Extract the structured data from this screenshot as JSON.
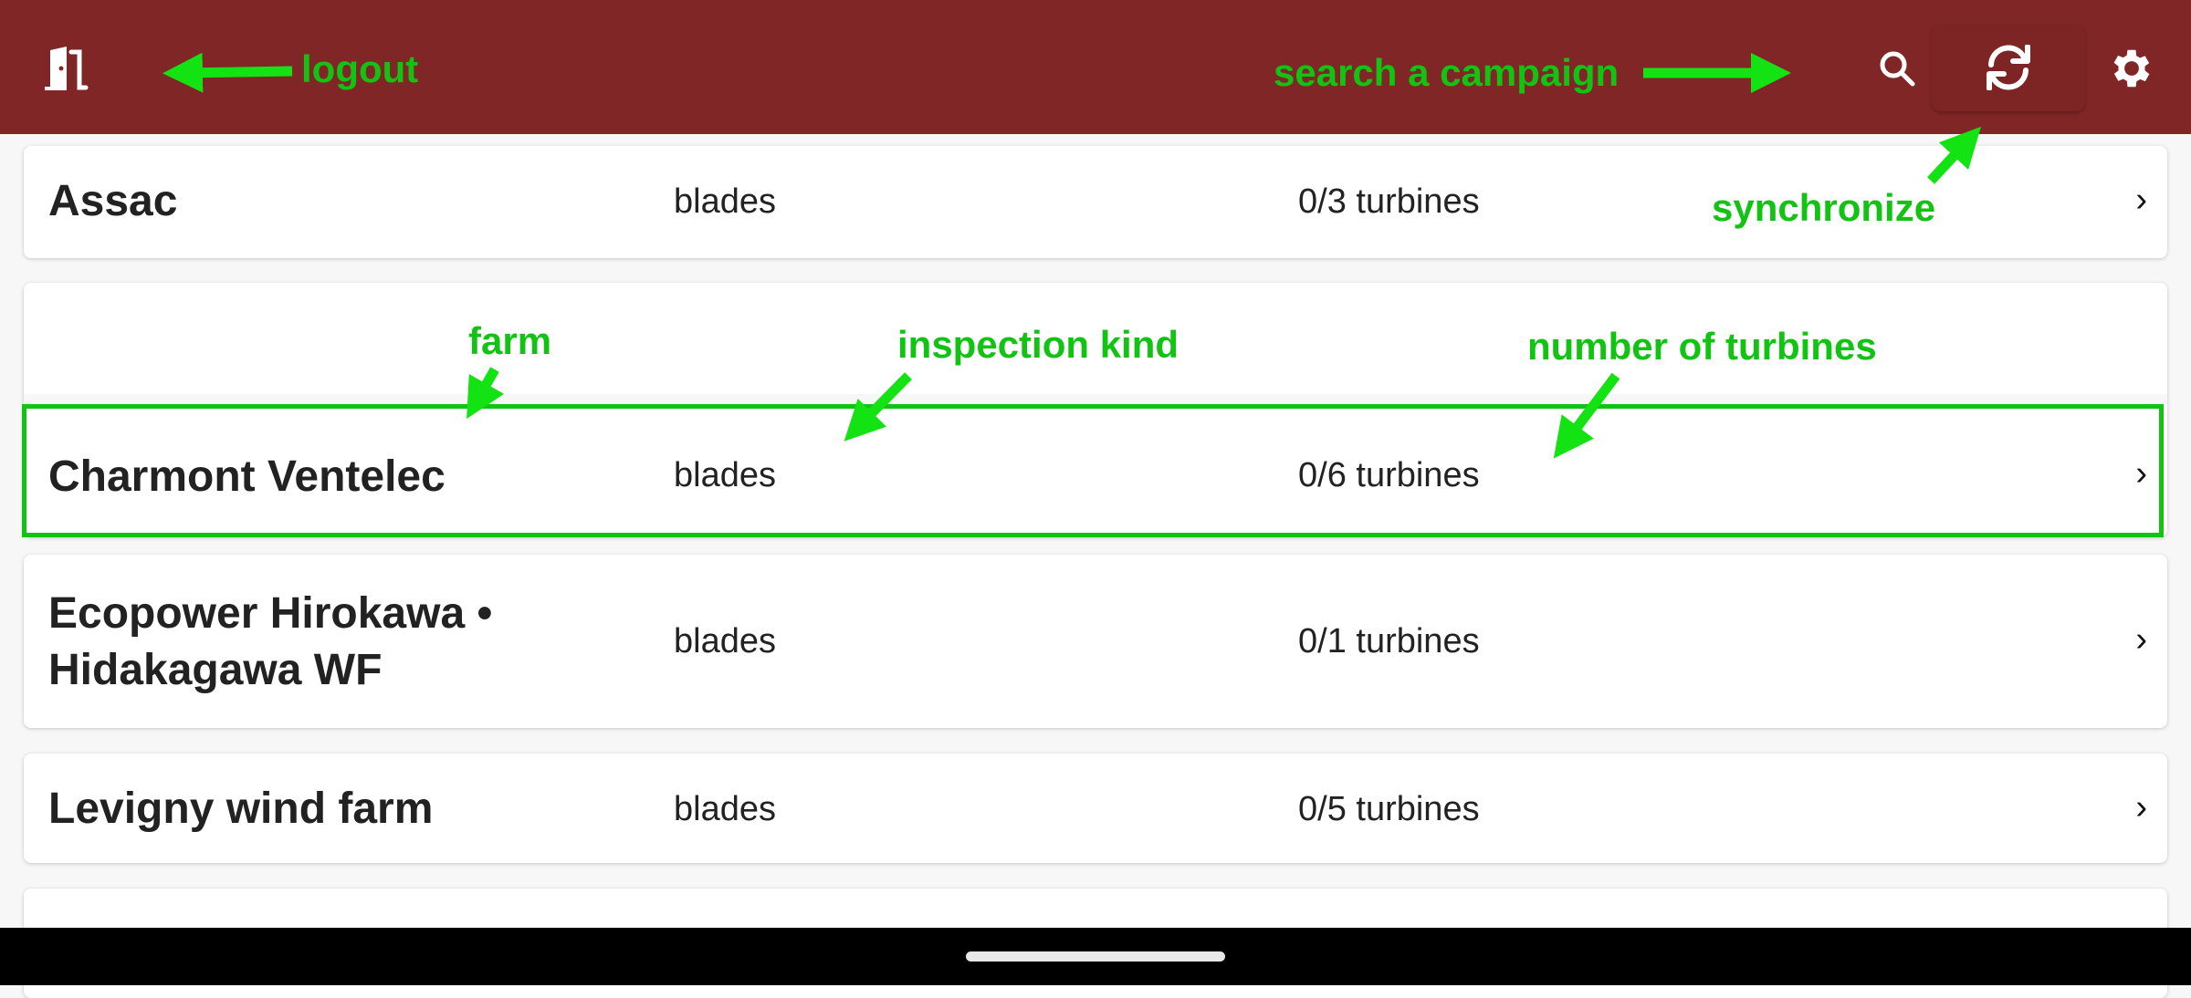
{
  "header": {
    "background": "#812626",
    "icons": [
      "logout-door-icon",
      "search-icon",
      "sync-icon",
      "gear-icon"
    ]
  },
  "campaigns": [
    {
      "farm": "Assac",
      "kind": "blades",
      "turbines": "0/3 turbines"
    },
    {
      "farm": "Charmont Ventelec",
      "kind": "blades",
      "turbines": "0/6 turbines"
    },
    {
      "farm": "Ecopower Hirokawa • Hidakagawa WF",
      "farm_line1": "Ecopower Hirokawa •",
      "farm_line2": "Hidakagawa WF",
      "kind": "blades",
      "turbines": "0/1 turbines"
    },
    {
      "farm": "Levigny wind farm",
      "kind": "blades",
      "turbines": "0/5 turbines"
    }
  ],
  "annotations": {
    "color": "#13c313",
    "logout": "logout",
    "search": "search a campaign",
    "synchronize": "synchronize",
    "farm": "farm",
    "inspection_kind": "inspection kind",
    "number_of_turbines": "number of turbines"
  }
}
